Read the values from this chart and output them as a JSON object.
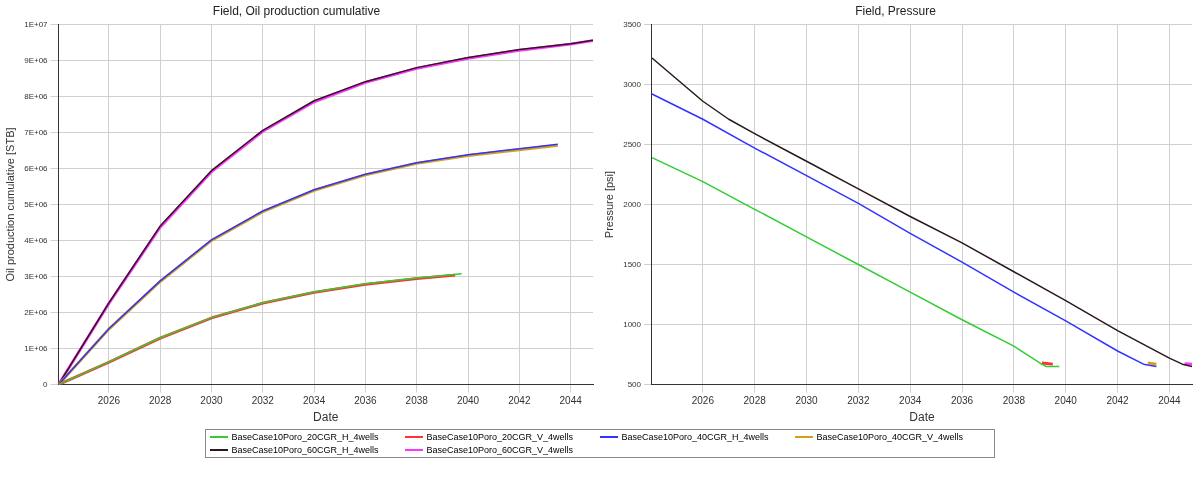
{
  "chart_data": [
    {
      "type": "line",
      "title": "Field, Oil production cumulative",
      "xlabel": "Date",
      "ylabel": "Oil production cumulative [STB]",
      "xlim": [
        "2024-01-15",
        "2044-11-15"
      ],
      "xticks": [
        "2026",
        "2028",
        "2030",
        "2032",
        "2034",
        "2036",
        "2038",
        "2040",
        "2042",
        "2044"
      ],
      "ylim": [
        0,
        10000000
      ],
      "yticks": [
        0,
        {
          "value": 1000000,
          "label": "1E+06"
        },
        {
          "value": 2000000,
          "label": "2E+06"
        },
        {
          "value": 3000000,
          "label": "3E+06"
        },
        {
          "value": 4000000,
          "label": "4E+06"
        },
        {
          "value": 5000000,
          "label": "5E+06"
        },
        {
          "value": 6000000,
          "label": "6E+06"
        },
        {
          "value": 7000000,
          "label": "7E+06"
        },
        {
          "value": 8000000,
          "label": "8E+06"
        },
        {
          "value": 9000000,
          "label": "9E+06"
        },
        {
          "value": 10000000,
          "label": "1E+07"
        }
      ],
      "grid": true,
      "legend": "bottom",
      "marker": "none",
      "line_style": "solid",
      "series": [
        {
          "name": "BaseCase10Poro_20CGR_H_4wells",
          "color": "#33cc33",
          "x": [
            "2024-01-15",
            "2026",
            "2028",
            "2030",
            "2032",
            "2034",
            "2036",
            "2038",
            "2039-10"
          ],
          "values": [
            0,
            630000,
            1300000,
            1860000,
            2270000,
            2570000,
            2800000,
            2960000,
            3080000
          ]
        },
        {
          "name": "BaseCase10Poro_20CGR_V_4wells",
          "color": "#ff3333",
          "x": [
            "2024-01-15",
            "2026",
            "2028",
            "2030",
            "2032",
            "2034",
            "2036",
            "2038",
            "2039-07"
          ],
          "values": [
            0,
            620000,
            1290000,
            1850000,
            2260000,
            2560000,
            2780000,
            2940000,
            3040000
          ]
        },
        {
          "name": "BaseCase10Poro_40CGR_H_4wells",
          "color": "#3333ff",
          "x": [
            "2024-01-15",
            "2026",
            "2028",
            "2030",
            "2032",
            "2034",
            "2036",
            "2038",
            "2040",
            "2042",
            "2043-07"
          ],
          "values": [
            0,
            1550000,
            2880000,
            4020000,
            4820000,
            5410000,
            5840000,
            6160000,
            6380000,
            6550000,
            6670000
          ]
        },
        {
          "name": "BaseCase10Poro_40CGR_V_4wells",
          "color": "#d4a017",
          "x": [
            "2024-01-15",
            "2026",
            "2028",
            "2030",
            "2032",
            "2034",
            "2036",
            "2038",
            "2040",
            "2042",
            "2043-07"
          ],
          "values": [
            0,
            1540000,
            2860000,
            4000000,
            4800000,
            5390000,
            5820000,
            6140000,
            6360000,
            6520000,
            6640000
          ]
        },
        {
          "name": "BaseCase10Poro_60CGR_H_4wells",
          "color": "#2b1a1a",
          "x": [
            "2024-01-15",
            "2026",
            "2028",
            "2030",
            "2032",
            "2034",
            "2036",
            "2038",
            "2040",
            "2042",
            "2044",
            "2044-11-15"
          ],
          "values": [
            0,
            2270000,
            4400000,
            5940000,
            7060000,
            7880000,
            8410000,
            8800000,
            9080000,
            9300000,
            9460000,
            9560000
          ]
        },
        {
          "name": "BaseCase10Poro_60CGR_V_4wells",
          "color": "#ff33ff",
          "x": [
            "2024-01-15",
            "2026",
            "2028",
            "2030",
            "2032",
            "2034",
            "2036",
            "2038",
            "2040",
            "2042",
            "2044",
            "2044-11-15"
          ],
          "values": [
            0,
            2250000,
            4370000,
            5910000,
            7030000,
            7850000,
            8390000,
            8780000,
            9060000,
            9280000,
            9450000,
            9550000
          ]
        }
      ]
    },
    {
      "type": "line",
      "title": "Field, Pressure",
      "xlabel": "Date",
      "ylabel": "Pressure [psi]",
      "xlim": [
        "2024-01-15",
        "2044-11-15"
      ],
      "xticks": [
        "2026",
        "2028",
        "2030",
        "2032",
        "2034",
        "2036",
        "2038",
        "2040",
        "2042",
        "2044"
      ],
      "ylim": [
        500,
        3500
      ],
      "yticks": [
        500,
        1000,
        1500,
        2000,
        2500,
        3000,
        3500
      ],
      "grid": true,
      "marker": "none",
      "line_style": "solid",
      "series": [
        {
          "color": "#33cc33",
          "x": [
            "2024-01-15",
            "2026",
            "2028",
            "2030",
            "2032",
            "2034",
            "2036",
            "2038",
            "2039",
            "2039-04",
            "2039-10"
          ],
          "values": [
            2390,
            2190,
            1960,
            1730,
            1500,
            1270,
            1040,
            820,
            680,
            650,
            650
          ]
        },
        {
          "color": "#ff3333",
          "x": [
            "2039-02",
            "2039-07"
          ],
          "values": [
            680,
            670
          ]
        },
        {
          "color": "#3333ff",
          "x": [
            "2024-01-15",
            "2026",
            "2028",
            "2030",
            "2032",
            "2034",
            "2036",
            "2038",
            "2040",
            "2042",
            "2043",
            "2043-07"
          ],
          "values": [
            2920,
            2710,
            2470,
            2240,
            2010,
            1760,
            1520,
            1270,
            1030,
            780,
            670,
            650
          ]
        },
        {
          "color": "#d4a017",
          "x": [
            "2043-03",
            "2043-07"
          ],
          "values": [
            680,
            670
          ]
        },
        {
          "color": "#2b1a1a",
          "x": [
            "2024-01-15",
            "2026",
            "2027",
            "2028",
            "2030",
            "2032",
            "2034",
            "2036",
            "2038",
            "2040",
            "2042",
            "2044",
            "2044-07",
            "2044-11-15"
          ],
          "values": [
            3220,
            2860,
            2710,
            2590,
            2360,
            2130,
            1900,
            1680,
            1440,
            1200,
            950,
            720,
            670,
            650
          ]
        },
        {
          "color": "#ff33ff",
          "x": [
            "2044-08",
            "2044-11-15"
          ],
          "values": [
            675,
            670
          ]
        }
      ]
    }
  ]
}
